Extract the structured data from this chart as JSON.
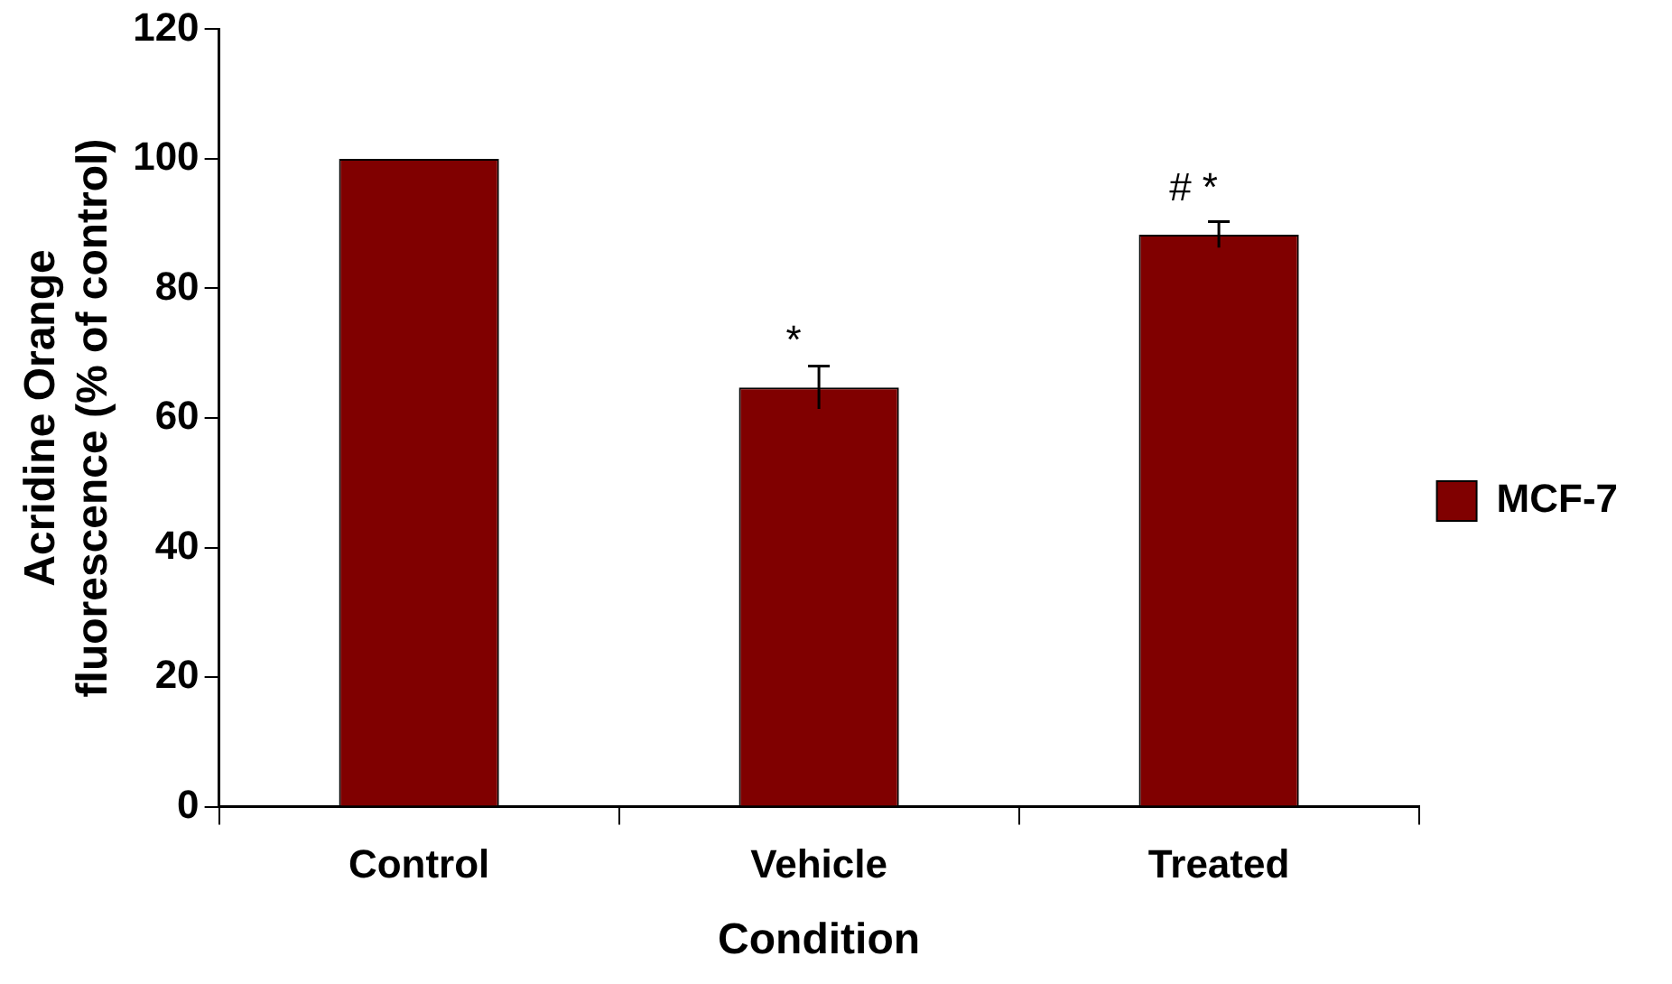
{
  "chart_data": {
    "type": "bar",
    "xlabel": "Condition",
    "ylabel": "Acridine Orange\nfluorescence (% of control)",
    "categories": [
      "Control",
      "Vehicle",
      "Treated"
    ],
    "series": [
      {
        "name": "MCF-7",
        "color": "#800000",
        "values": [
          100,
          64.7,
          88.3
        ],
        "errors": [
          null,
          3.3,
          2.0
        ]
      }
    ],
    "ylim": [
      0,
      120
    ],
    "yticks": [
      0,
      20,
      40,
      60,
      80,
      100,
      120
    ],
    "grid": false,
    "legend": "right",
    "annotations": [
      {
        "text": "*",
        "x": "Vehicle",
        "y": 64.7
      },
      {
        "text": "# *",
        "x": "Treated",
        "y": 88.3
      }
    ]
  }
}
